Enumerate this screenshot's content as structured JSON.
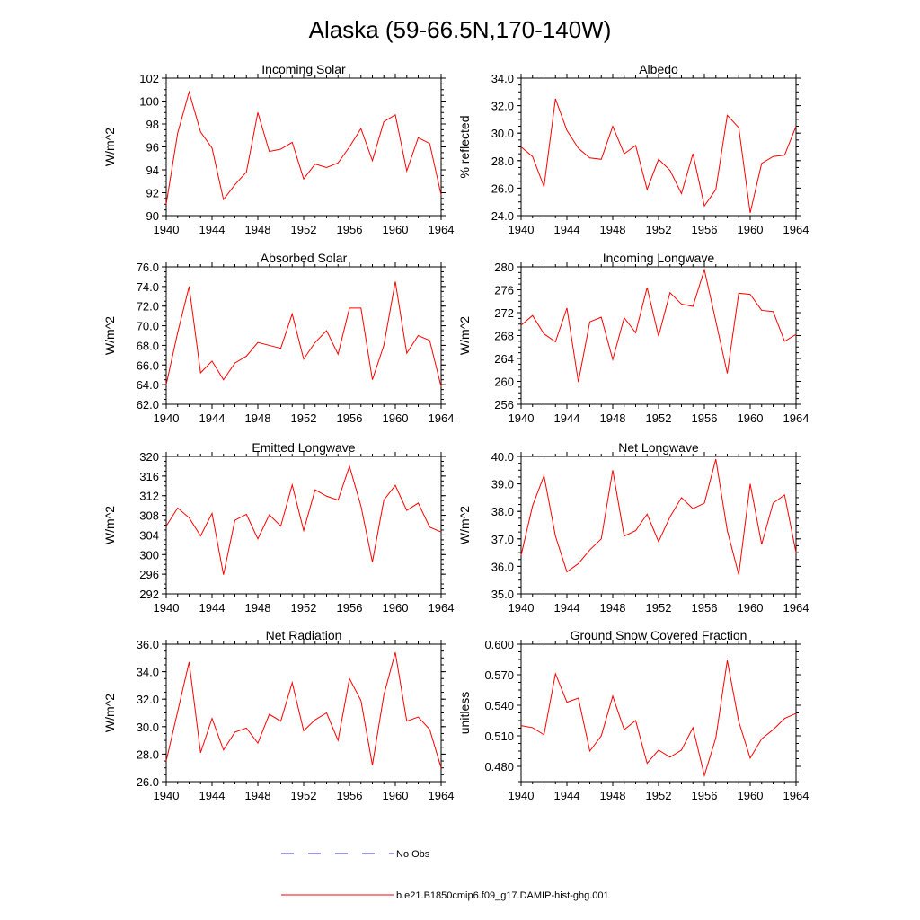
{
  "page": {
    "title": "Alaska (59-66.5N,170-140W)"
  },
  "legend": {
    "obs_label": "No Obs",
    "obs_color": "#3333cc",
    "model_label": "b.e21.B1850cmip6.f09_g17.DAMIP-hist-ghg.001",
    "model_color": "#ff0000"
  },
  "chart_data": [
    {
      "type": "line",
      "title": "Incoming Solar",
      "ylabel": "W/m^2",
      "xlim": [
        1940,
        1964
      ],
      "ylim": [
        90,
        102
      ],
      "xticks": [
        1940,
        1944,
        1948,
        1952,
        1956,
        1960,
        1964
      ],
      "yticks": [
        90,
        92,
        94,
        96,
        98,
        100,
        102
      ],
      "ydecimals": 0,
      "x": [
        1940,
        1941,
        1942,
        1943,
        1944,
        1945,
        1946,
        1947,
        1948,
        1949,
        1950,
        1951,
        1952,
        1953,
        1954,
        1955,
        1956,
        1957,
        1958,
        1959,
        1960,
        1961,
        1962,
        1963,
        1964
      ],
      "series": [
        {
          "values": [
            91.0,
            97.2,
            100.8,
            97.3,
            95.9,
            91.4,
            92.7,
            93.8,
            99.0,
            95.6,
            95.8,
            96.4,
            93.2,
            94.5,
            94.2,
            94.6,
            96.0,
            97.6,
            94.8,
            98.2,
            98.8,
            93.9,
            96.8,
            96.3,
            91.8
          ]
        }
      ]
    },
    {
      "type": "line",
      "title": "Albedo",
      "ylabel": "% reflected",
      "xlim": [
        1940,
        1964
      ],
      "ylim": [
        24,
        34
      ],
      "xticks": [
        1940,
        1944,
        1948,
        1952,
        1956,
        1960,
        1964
      ],
      "yticks": [
        24,
        26,
        28,
        30,
        32,
        34
      ],
      "ydecimals": 1,
      "x": [
        1940,
        1941,
        1942,
        1943,
        1944,
        1945,
        1946,
        1947,
        1948,
        1949,
        1950,
        1951,
        1952,
        1953,
        1954,
        1955,
        1956,
        1957,
        1958,
        1959,
        1960,
        1961,
        1962,
        1963,
        1964
      ],
      "series": [
        {
          "values": [
            29.0,
            28.3,
            26.1,
            32.5,
            30.2,
            28.9,
            28.2,
            28.1,
            30.5,
            28.5,
            29.1,
            25.9,
            28.1,
            27.3,
            25.6,
            28.5,
            24.7,
            25.9,
            31.3,
            30.4,
            24.2,
            27.8,
            28.3,
            28.4,
            30.5
          ]
        }
      ]
    },
    {
      "type": "line",
      "title": "Absorbed Solar",
      "ylabel": "W/m^2",
      "xlim": [
        1940,
        1964
      ],
      "ylim": [
        62,
        76
      ],
      "xticks": [
        1940,
        1944,
        1948,
        1952,
        1956,
        1960,
        1964
      ],
      "yticks": [
        62,
        64,
        66,
        68,
        70,
        72,
        74,
        76
      ],
      "ydecimals": 1,
      "x": [
        1940,
        1941,
        1942,
        1943,
        1944,
        1945,
        1946,
        1947,
        1948,
        1949,
        1950,
        1951,
        1952,
        1953,
        1954,
        1955,
        1956,
        1957,
        1958,
        1959,
        1960,
        1961,
        1962,
        1963,
        1964
      ],
      "series": [
        {
          "values": [
            64.0,
            69.3,
            74.0,
            65.2,
            66.4,
            64.5,
            66.2,
            66.9,
            68.3,
            68.0,
            67.7,
            71.2,
            66.6,
            68.3,
            69.5,
            67.1,
            71.8,
            71.8,
            64.5,
            68.0,
            74.5,
            67.2,
            69.0,
            68.5,
            63.8
          ]
        }
      ]
    },
    {
      "type": "line",
      "title": "Incoming Longwave",
      "ylabel": "W/m^2",
      "xlim": [
        1940,
        1964
      ],
      "ylim": [
        256,
        280
      ],
      "xticks": [
        1940,
        1944,
        1948,
        1952,
        1956,
        1960,
        1964
      ],
      "yticks": [
        256,
        260,
        264,
        268,
        272,
        276,
        280
      ],
      "ydecimals": 0,
      "x": [
        1940,
        1941,
        1942,
        1943,
        1944,
        1945,
        1946,
        1947,
        1948,
        1949,
        1950,
        1951,
        1952,
        1953,
        1954,
        1955,
        1956,
        1957,
        1958,
        1959,
        1960,
        1961,
        1962,
        1963,
        1964
      ],
      "series": [
        {
          "values": [
            269.8,
            271.5,
            268.3,
            266.9,
            272.8,
            259.9,
            270.4,
            271.2,
            263.8,
            271.1,
            268.5,
            276.4,
            267.9,
            275.5,
            273.5,
            273.1,
            279.5,
            270.5,
            261.4,
            275.4,
            275.2,
            272.4,
            272.2,
            267.0,
            268.2
          ]
        }
      ]
    },
    {
      "type": "line",
      "title": "Emitted Longwave",
      "ylabel": "W/m^2",
      "xlim": [
        1940,
        1964
      ],
      "ylim": [
        292,
        320
      ],
      "xticks": [
        1940,
        1944,
        1948,
        1952,
        1956,
        1960,
        1964
      ],
      "yticks": [
        292,
        296,
        300,
        304,
        308,
        312,
        316,
        320
      ],
      "ydecimals": 0,
      "x": [
        1940,
        1941,
        1942,
        1943,
        1944,
        1945,
        1946,
        1947,
        1948,
        1949,
        1950,
        1951,
        1952,
        1953,
        1954,
        1955,
        1956,
        1957,
        1958,
        1959,
        1960,
        1961,
        1962,
        1963,
        1964
      ],
      "series": [
        {
          "values": [
            305.8,
            309.5,
            307.5,
            303.8,
            308.4,
            295.9,
            307.0,
            308.2,
            303.2,
            308.1,
            305.8,
            314.2,
            304.9,
            313.2,
            311.9,
            311.1,
            318.0,
            309.9,
            298.5,
            311.1,
            314.1,
            309.0,
            310.5,
            305.6,
            304.6
          ]
        }
      ]
    },
    {
      "type": "line",
      "title": "Net Longwave",
      "ylabel": "W/m^2",
      "xlim": [
        1940,
        1964
      ],
      "ylim": [
        35,
        40
      ],
      "xticks": [
        1940,
        1944,
        1948,
        1952,
        1956,
        1960,
        1964
      ],
      "yticks": [
        35,
        36,
        37,
        38,
        39,
        40
      ],
      "ydecimals": 1,
      "x": [
        1940,
        1941,
        1942,
        1943,
        1944,
        1945,
        1946,
        1947,
        1948,
        1949,
        1950,
        1951,
        1952,
        1953,
        1954,
        1955,
        1956,
        1957,
        1958,
        1959,
        1960,
        1961,
        1962,
        1963,
        1964
      ],
      "series": [
        {
          "values": [
            36.4,
            38.2,
            39.3,
            37.1,
            35.8,
            36.1,
            36.6,
            37.0,
            39.5,
            37.1,
            37.3,
            37.9,
            36.9,
            37.8,
            38.5,
            38.1,
            38.3,
            39.9,
            37.3,
            35.7,
            39.0,
            36.8,
            38.3,
            38.6,
            36.5
          ]
        }
      ]
    },
    {
      "type": "line",
      "title": "Net Radiation",
      "ylabel": "W/m^2",
      "xlim": [
        1940,
        1964
      ],
      "ylim": [
        26,
        36
      ],
      "xticks": [
        1940,
        1944,
        1948,
        1952,
        1956,
        1960,
        1964
      ],
      "yticks": [
        26,
        28,
        30,
        32,
        34,
        36
      ],
      "ydecimals": 1,
      "x": [
        1940,
        1941,
        1942,
        1943,
        1944,
        1945,
        1946,
        1947,
        1948,
        1949,
        1950,
        1951,
        1952,
        1953,
        1954,
        1955,
        1956,
        1957,
        1958,
        1959,
        1960,
        1961,
        1962,
        1963,
        1964
      ],
      "series": [
        {
          "values": [
            27.5,
            31.1,
            34.7,
            28.1,
            30.6,
            28.3,
            29.6,
            29.9,
            28.8,
            30.9,
            30.4,
            33.2,
            29.7,
            30.5,
            31.0,
            29.0,
            33.5,
            31.9,
            27.2,
            32.3,
            35.4,
            30.4,
            30.7,
            29.8,
            27.0
          ]
        }
      ]
    },
    {
      "type": "line",
      "title": "Ground Snow Covered Fraction",
      "ylabel": "unitless",
      "xlim": [
        1940,
        1964
      ],
      "ylim": [
        0.465,
        0.6
      ],
      "xticks": [
        1940,
        1944,
        1948,
        1952,
        1956,
        1960,
        1964
      ],
      "yticks": [
        0.48,
        0.51,
        0.54,
        0.57,
        0.6
      ],
      "ydecimals": 3,
      "x": [
        1940,
        1941,
        1942,
        1943,
        1944,
        1945,
        1946,
        1947,
        1948,
        1949,
        1950,
        1951,
        1952,
        1953,
        1954,
        1955,
        1956,
        1957,
        1958,
        1959,
        1960,
        1961,
        1962,
        1963,
        1964
      ],
      "series": [
        {
          "values": [
            0.52,
            0.518,
            0.511,
            0.571,
            0.543,
            0.547,
            0.495,
            0.51,
            0.549,
            0.516,
            0.525,
            0.483,
            0.496,
            0.489,
            0.496,
            0.518,
            0.471,
            0.508,
            0.584,
            0.524,
            0.488,
            0.507,
            0.516,
            0.527,
            0.532
          ]
        }
      ]
    }
  ]
}
